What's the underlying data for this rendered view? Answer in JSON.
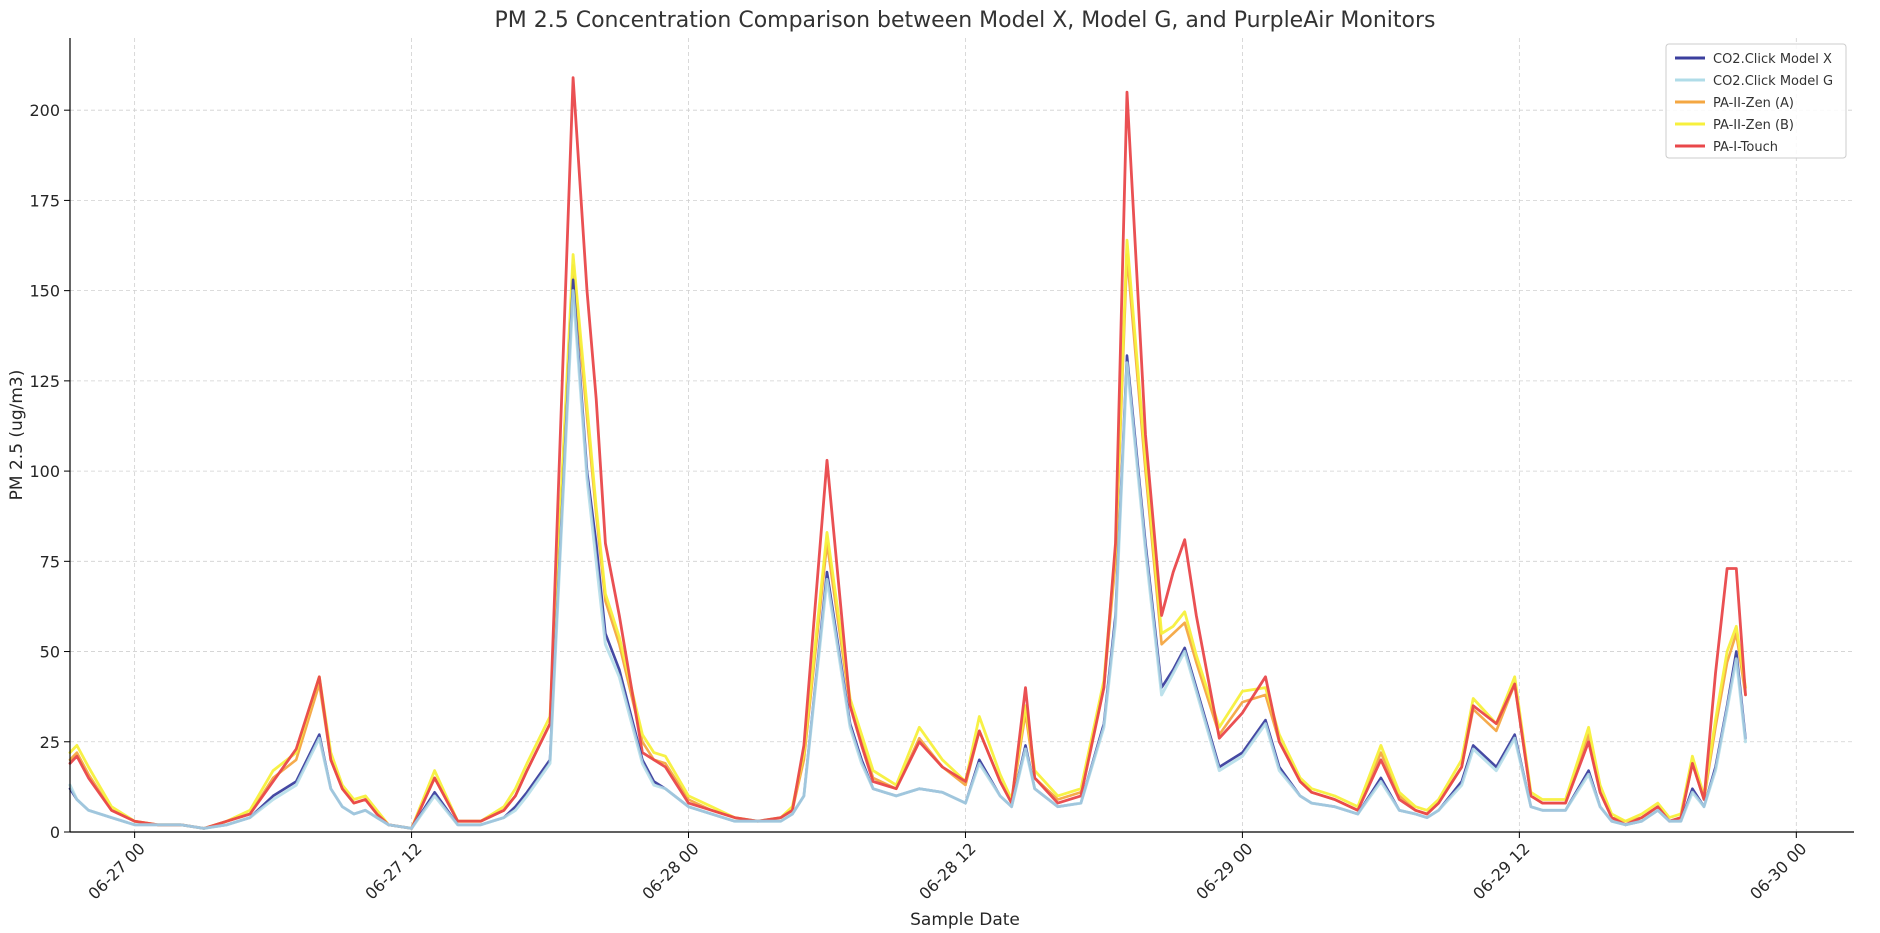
{
  "chart_data": {
    "type": "line",
    "title": "PM 2.5 Concentration Comparison between Model X, Model G, and PurpleAir Monitors",
    "xlabel": "Sample Date",
    "ylabel": "PM 2.5 (ug/m3)",
    "x_ticks": [
      "06-27 00",
      "06-27 12",
      "06-28 00",
      "06-28 12",
      "06-29 00",
      "06-29 12",
      "06-30 00"
    ],
    "x_tick_hours": [
      0,
      12,
      24,
      36,
      48,
      60,
      72
    ],
    "xlim_hours": [
      -2.8,
      74.5
    ],
    "y_ticks": [
      0,
      25,
      50,
      75,
      100,
      125,
      150,
      175,
      200
    ],
    "ylim": [
      0,
      220
    ],
    "grid": true,
    "legend_position": "top-right",
    "x_hours": [
      -2.8,
      -2.5,
      -2.0,
      -1.0,
      0.0,
      1.0,
      2.0,
      3.0,
      4.0,
      5.0,
      6.0,
      7.0,
      8.0,
      8.5,
      9.0,
      9.5,
      10.0,
      10.5,
      11.0,
      12.0,
      13.0,
      14.0,
      14.5,
      15.0,
      16.0,
      16.5,
      17.0,
      18.0,
      19.0,
      19.6,
      20.0,
      20.4,
      21.0,
      22.0,
      22.5,
      23.0,
      24.0,
      25.0,
      26.0,
      27.0,
      28.0,
      28.5,
      29.0,
      30.0,
      31.0,
      31.5,
      32.0,
      33.0,
      34.0,
      35.0,
      36.0,
      36.6,
      37.5,
      38.0,
      38.6,
      39.0,
      40.0,
      41.0,
      42.0,
      42.5,
      43.0,
      43.8,
      44.5,
      45.0,
      45.5,
      46.0,
      47.0,
      48.0,
      49.0,
      49.6,
      50.5,
      51.0,
      52.0,
      53.0,
      54.0,
      54.8,
      55.5,
      56.0,
      56.5,
      57.5,
      58.0,
      59.0,
      59.8,
      60.5,
      61.0,
      61.5,
      62.0,
      63.0,
      63.5,
      64.0,
      64.6,
      65.3,
      66.0,
      66.5,
      67.0,
      67.5,
      68.0,
      68.5,
      69.0,
      69.4,
      69.8
    ],
    "series": [
      {
        "name": "CO2.Click Model X",
        "color": "#3b3f9e",
        "values": [
          12,
          9,
          6,
          4,
          2,
          2,
          2,
          1,
          2,
          4,
          10,
          14,
          27,
          12,
          7,
          5,
          6,
          4,
          2,
          1,
          11,
          2,
          2,
          2,
          4,
          7,
          11,
          20,
          153,
          100,
          80,
          55,
          45,
          20,
          14,
          12,
          7,
          5,
          3,
          3,
          3,
          5,
          10,
          72,
          30,
          20,
          12,
          10,
          12,
          11,
          8,
          20,
          10,
          7,
          24,
          12,
          7,
          8,
          30,
          60,
          132,
          80,
          40,
          45,
          51,
          40,
          18,
          22,
          31,
          18,
          10,
          8,
          7,
          5,
          15,
          6,
          5,
          4,
          6,
          14,
          24,
          18,
          27,
          7,
          6,
          6,
          6,
          17,
          7,
          3,
          2,
          3,
          6,
          3,
          3,
          12,
          7,
          18,
          35,
          50,
          26
        ]
      },
      {
        "name": "CO2.Click Model G",
        "color": "#b0dce8",
        "values": [
          13,
          9,
          6,
          4,
          2,
          2,
          2,
          1,
          2,
          4,
          9,
          13,
          26,
          12,
          7,
          5,
          6,
          4,
          2,
          1,
          10,
          2,
          2,
          2,
          4,
          6,
          10,
          19,
          150,
          98,
          75,
          52,
          43,
          19,
          13,
          12,
          7,
          5,
          3,
          3,
          3,
          5,
          10,
          70,
          29,
          19,
          12,
          10,
          12,
          11,
          8,
          19,
          10,
          7,
          23,
          12,
          7,
          8,
          29,
          58,
          130,
          78,
          38,
          44,
          50,
          39,
          17,
          21,
          30,
          17,
          10,
          8,
          7,
          5,
          14,
          6,
          5,
          4,
          6,
          13,
          23,
          17,
          26,
          7,
          6,
          6,
          6,
          16,
          7,
          3,
          2,
          3,
          6,
          3,
          3,
          11,
          7,
          17,
          34,
          48,
          25
        ]
      },
      {
        "name": "PA-II-Zen (A)",
        "color": "#f4a742",
        "values": [
          20,
          22,
          16,
          6,
          3,
          2,
          2,
          1,
          3,
          5,
          15,
          20,
          41,
          20,
          12,
          8,
          9,
          5,
          2,
          1,
          15,
          3,
          3,
          3,
          6,
          10,
          17,
          30,
          157,
          115,
          88,
          64,
          52,
          25,
          20,
          19,
          9,
          6,
          4,
          3,
          4,
          6,
          20,
          80,
          35,
          25,
          15,
          12,
          26,
          18,
          13,
          28,
          14,
          8,
          33,
          15,
          9,
          11,
          40,
          75,
          160,
          100,
          52,
          55,
          58,
          47,
          27,
          36,
          38,
          25,
          14,
          11,
          9,
          6,
          22,
          10,
          6,
          5,
          8,
          18,
          34,
          28,
          41,
          10,
          8,
          8,
          8,
          27,
          11,
          4,
          3,
          4,
          7,
          3,
          4,
          19,
          9,
          29,
          47,
          55,
          38
        ]
      },
      {
        "name": "PA-II-Zen (B)",
        "color": "#f7f03c",
        "values": [
          22,
          24,
          18,
          7,
          3,
          2,
          2,
          1,
          3,
          6,
          17,
          22,
          43,
          22,
          13,
          9,
          10,
          6,
          2,
          1,
          17,
          3,
          3,
          3,
          7,
          12,
          19,
          32,
          160,
          118,
          90,
          66,
          54,
          27,
          22,
          21,
          10,
          7,
          4,
          3,
          4,
          7,
          22,
          83,
          37,
          27,
          17,
          13,
          29,
          20,
          14,
          32,
          16,
          9,
          35,
          17,
          10,
          12,
          42,
          78,
          164,
          103,
          55,
          57,
          61,
          49,
          29,
          39,
          40,
          27,
          15,
          12,
          10,
          7,
          24,
          11,
          7,
          6,
          9,
          20,
          37,
          30,
          43,
          11,
          9,
          9,
          9,
          29,
          13,
          5,
          3,
          5,
          8,
          4,
          5,
          21,
          10,
          31,
          50,
          57,
          40
        ]
      },
      {
        "name": "PA-I-Touch",
        "color": "#e9474a",
        "values": [
          19,
          21,
          15,
          6,
          3,
          2,
          2,
          1,
          3,
          5,
          14,
          23,
          43,
          20,
          12,
          8,
          9,
          5,
          2,
          1,
          15,
          3,
          3,
          3,
          6,
          10,
          17,
          30,
          209,
          150,
          120,
          80,
          60,
          22,
          20,
          18,
          8,
          6,
          4,
          3,
          4,
          6,
          24,
          103,
          35,
          24,
          14,
          12,
          25,
          18,
          14,
          28,
          14,
          8,
          40,
          15,
          8,
          10,
          40,
          80,
          205,
          110,
          60,
          72,
          81,
          60,
          26,
          33,
          43,
          25,
          14,
          11,
          9,
          6,
          20,
          9,
          6,
          5,
          8,
          18,
          35,
          30,
          41,
          10,
          8,
          8,
          8,
          25,
          11,
          4,
          2,
          4,
          7,
          3,
          4,
          19,
          9,
          44,
          73,
          73,
          38
        ]
      }
    ]
  }
}
